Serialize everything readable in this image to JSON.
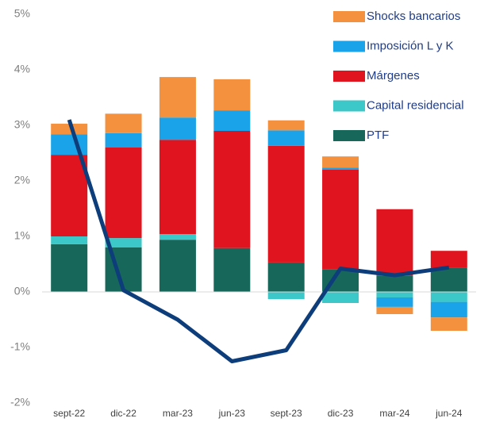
{
  "chart_data": {
    "type": "stacked-bar-line",
    "categories": [
      "sept-22",
      "dic-22",
      "mar-23",
      "jun-23",
      "sept-23",
      "dic-23",
      "mar-24",
      "jun-24"
    ],
    "series": [
      {
        "name": "PTF",
        "color": "#17675a",
        "values": [
          0.86,
          0.8,
          0.94,
          0.79,
          0.53,
          0.41,
          0.29,
          0.43
        ]
      },
      {
        "name": "Capital residencial",
        "color": "#3cc8c8",
        "values": [
          0.14,
          0.17,
          0.1,
          0,
          -0.13,
          -0.2,
          -0.1,
          -0.18
        ]
      },
      {
        "name": "Márgenes",
        "color": "#e0141e",
        "values": [
          1.47,
          1.63,
          1.7,
          2.11,
          2.1,
          1.79,
          1.2,
          0.31
        ]
      },
      {
        "name": "Imposición L y K",
        "color": "#1aa3e8",
        "values": [
          0.37,
          0.26,
          0.4,
          0.37,
          0.28,
          0.04,
          -0.17,
          -0.28
        ]
      },
      {
        "name": "Shocks bancarios",
        "color": "#f4913e",
        "values": [
          0.19,
          0.35,
          0.73,
          0.56,
          0.18,
          0.2,
          -0.13,
          -0.24
        ]
      }
    ],
    "line": {
      "color": "#0d3d7a",
      "values": [
        3.1,
        0.03,
        -0.5,
        -1.25,
        -1.05,
        0.42,
        0.3,
        0.44
      ]
    },
    "ylim": [
      -2,
      5
    ],
    "yticks": [
      {
        "value": -2,
        "label": "-2%"
      },
      {
        "value": -1,
        "label": "-1%"
      },
      {
        "value": 0,
        "label": "0%"
      },
      {
        "value": 1,
        "label": "1%"
      },
      {
        "value": 2,
        "label": "2%"
      },
      {
        "value": 3,
        "label": "3%"
      },
      {
        "value": 4,
        "label": "4%"
      },
      {
        "value": 5,
        "label": "5%"
      }
    ],
    "legend": "top-right"
  }
}
